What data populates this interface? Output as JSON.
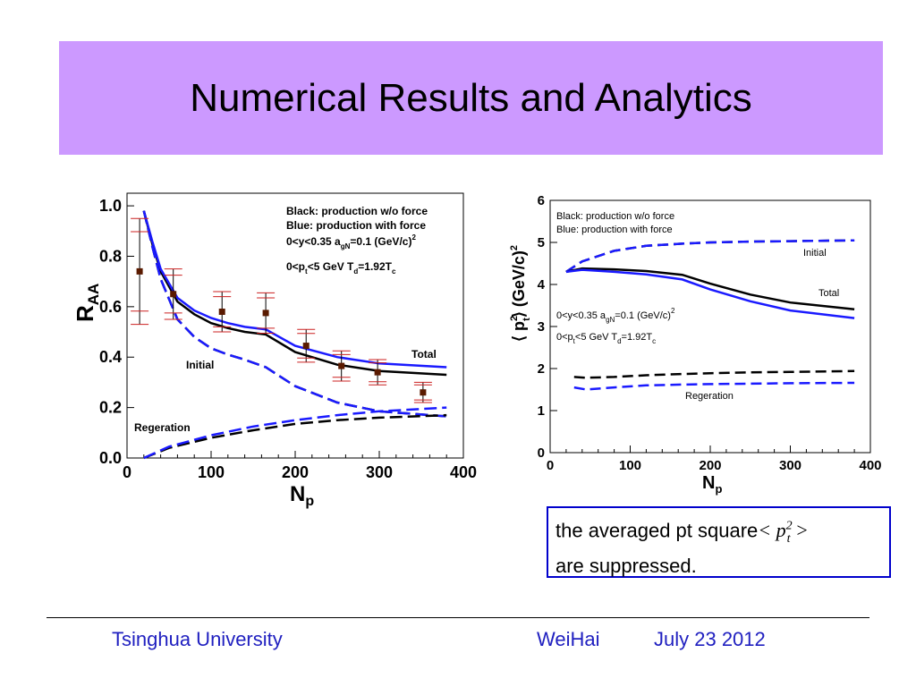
{
  "slide": {
    "title": "Numerical Results and Analytics",
    "footer_left": "Tsinghua University",
    "footer_mid": "WeiHai",
    "footer_right": "July 23  2012"
  },
  "note": {
    "text_before": "the averaged pt square",
    "formula": "< p",
    "formula_sup": "2",
    "formula_sub": "t",
    "formula_end": " >",
    "text_after": "are suppressed."
  },
  "colors": {
    "black_curve": "#000000",
    "blue_curve": "#1a1aff",
    "data_point": "#5a1a00",
    "error_bar": "#cc2020",
    "title_bg": "#cc99ff",
    "footer_text": "#2020c0"
  },
  "chart_data": [
    {
      "type": "line",
      "ylabel": "R",
      "ylabel_sub": "AA",
      "xlabel": "N",
      "xlabel_sub": "p",
      "xlim": [
        0,
        400
      ],
      "ylim": [
        0,
        1.05
      ],
      "xticks": [
        0,
        100,
        200,
        300,
        400
      ],
      "yticks": [
        0.0,
        0.2,
        0.4,
        0.6,
        0.8,
        1.0
      ],
      "ytick_labels": [
        "0.0",
        "0.2",
        "0.4",
        "0.6",
        "0.8",
        "1.0"
      ],
      "legend": [
        "Black: production w/o force",
        "Blue: production with force"
      ],
      "annotations": {
        "cuts1": "0<y<0.35   a",
        "cuts1_sub": "gN",
        "cuts1_end": "=0.1 (GeV/c)",
        "cuts1_sup": "2",
        "cuts2": "0<p",
        "cuts2_sub": "t",
        "cuts2_mid": "<5 GeV  T",
        "cuts2_sub2": "d",
        "cuts2_end": "=1.92T",
        "cuts2_sub3": "c",
        "label_total": "Total",
        "label_initial": "Initial",
        "label_regeneration": "Regeration"
      },
      "series": [
        {
          "name": "Total",
          "color": "black",
          "dash": false,
          "x": [
            20,
            30,
            40,
            60,
            80,
            100,
            120,
            140,
            165,
            200,
            250,
            300,
            380
          ],
          "y": [
            0.98,
            0.85,
            0.74,
            0.62,
            0.57,
            0.535,
            0.515,
            0.5,
            0.49,
            0.42,
            0.37,
            0.345,
            0.33
          ]
        },
        {
          "name": "Total",
          "color": "blue",
          "dash": false,
          "x": [
            20,
            30,
            40,
            60,
            80,
            100,
            120,
            140,
            165,
            200,
            250,
            300,
            380
          ],
          "y": [
            0.98,
            0.86,
            0.75,
            0.635,
            0.585,
            0.555,
            0.535,
            0.52,
            0.51,
            0.445,
            0.4,
            0.375,
            0.36
          ]
        },
        {
          "name": "Initial",
          "color": "black",
          "dash": true,
          "x": [
            20,
            30,
            40,
            60,
            80,
            100,
            120,
            140,
            165,
            200,
            250,
            300,
            380
          ],
          "y": [
            0.98,
            0.84,
            0.71,
            0.55,
            0.48,
            0.435,
            0.41,
            0.39,
            0.36,
            0.285,
            0.22,
            0.185,
            0.165
          ]
        },
        {
          "name": "Initial",
          "color": "blue",
          "dash": true,
          "x": [
            20,
            30,
            40,
            60,
            80,
            100,
            120,
            140,
            165,
            200,
            250,
            300,
            380
          ],
          "y": [
            0.98,
            0.84,
            0.71,
            0.55,
            0.48,
            0.435,
            0.41,
            0.39,
            0.36,
            0.285,
            0.22,
            0.185,
            0.165
          ]
        },
        {
          "name": "Regeration",
          "color": "black",
          "dash": true,
          "x": [
            20,
            50,
            100,
            150,
            200,
            250,
            300,
            380
          ],
          "y": [
            0.0,
            0.04,
            0.08,
            0.11,
            0.135,
            0.15,
            0.16,
            0.17
          ]
        },
        {
          "name": "Regeration",
          "color": "blue",
          "dash": true,
          "x": [
            20,
            50,
            100,
            150,
            200,
            250,
            300,
            380
          ],
          "y": [
            0.0,
            0.045,
            0.09,
            0.125,
            0.15,
            0.17,
            0.185,
            0.2
          ]
        }
      ],
      "data_points": {
        "x": [
          15,
          55,
          113,
          165,
          213,
          255,
          298,
          352
        ],
        "y": [
          0.74,
          0.65,
          0.58,
          0.575,
          0.445,
          0.365,
          0.34,
          0.26
        ],
        "yerr": [
          0.21,
          0.1,
          0.08,
          0.08,
          0.065,
          0.06,
          0.05,
          0.04
        ]
      }
    },
    {
      "type": "line",
      "ylabel": "⟨ p",
      "ylabel_sup": "2",
      "ylabel_sub": "t",
      "ylabel_end": "⟩ (GeV/c)",
      "ylabel_end_sup": "2",
      "xlabel": "N",
      "xlabel_sub": "p",
      "xlim": [
        0,
        400
      ],
      "ylim": [
        0,
        6
      ],
      "xticks": [
        0,
        100,
        200,
        300,
        400
      ],
      "yticks": [
        0,
        1,
        2,
        3,
        4,
        5,
        6
      ],
      "legend": [
        "Black: production w/o force",
        "Blue: production with force"
      ],
      "annotations": {
        "cuts1": "0<y<0.35   a",
        "cuts1_sub": "gN",
        "cuts1_end": "=0.1 (GeV/c)",
        "cuts1_sup": "2",
        "cuts2": "0<p",
        "cuts2_sub": "t",
        "cuts2_mid": "<5 GeV  T",
        "cuts2_sub2": "d",
        "cuts2_end": "=1.92T",
        "cuts2_sub3": "c",
        "label_total": "Total",
        "label_initial": "Initial",
        "label_regeneration": "Regeration"
      },
      "series": [
        {
          "name": "Initial",
          "color": "black",
          "dash": true,
          "x": [
            20,
            40,
            80,
            120,
            165,
            200,
            250,
            300,
            380
          ],
          "y": [
            4.3,
            4.55,
            4.8,
            4.92,
            4.97,
            5.0,
            5.02,
            5.03,
            5.05
          ]
        },
        {
          "name": "Initial",
          "color": "blue",
          "dash": true,
          "x": [
            20,
            40,
            80,
            120,
            165,
            200,
            250,
            300,
            380
          ],
          "y": [
            4.3,
            4.55,
            4.8,
            4.92,
            4.97,
            5.0,
            5.02,
            5.03,
            5.05
          ]
        },
        {
          "name": "Total",
          "color": "black",
          "dash": false,
          "x": [
            20,
            40,
            80,
            120,
            165,
            200,
            250,
            300,
            380
          ],
          "y": [
            4.3,
            4.38,
            4.36,
            4.32,
            4.23,
            4.02,
            3.76,
            3.57,
            3.41
          ]
        },
        {
          "name": "Total",
          "color": "blue",
          "dash": false,
          "x": [
            20,
            40,
            80,
            120,
            165,
            200,
            250,
            300,
            380
          ],
          "y": [
            4.3,
            4.35,
            4.3,
            4.24,
            4.12,
            3.88,
            3.6,
            3.38,
            3.2
          ]
        },
        {
          "name": "Regeration",
          "color": "black",
          "dash": true,
          "x": [
            30,
            45,
            80,
            120,
            165,
            200,
            250,
            300,
            380
          ],
          "y": [
            1.8,
            1.78,
            1.8,
            1.84,
            1.87,
            1.89,
            1.91,
            1.92,
            1.94
          ]
        },
        {
          "name": "Regeration",
          "color": "blue",
          "dash": true,
          "x": [
            30,
            45,
            80,
            120,
            165,
            200,
            250,
            300,
            380
          ],
          "y": [
            1.55,
            1.5,
            1.55,
            1.6,
            1.62,
            1.63,
            1.64,
            1.65,
            1.66
          ]
        }
      ]
    }
  ]
}
